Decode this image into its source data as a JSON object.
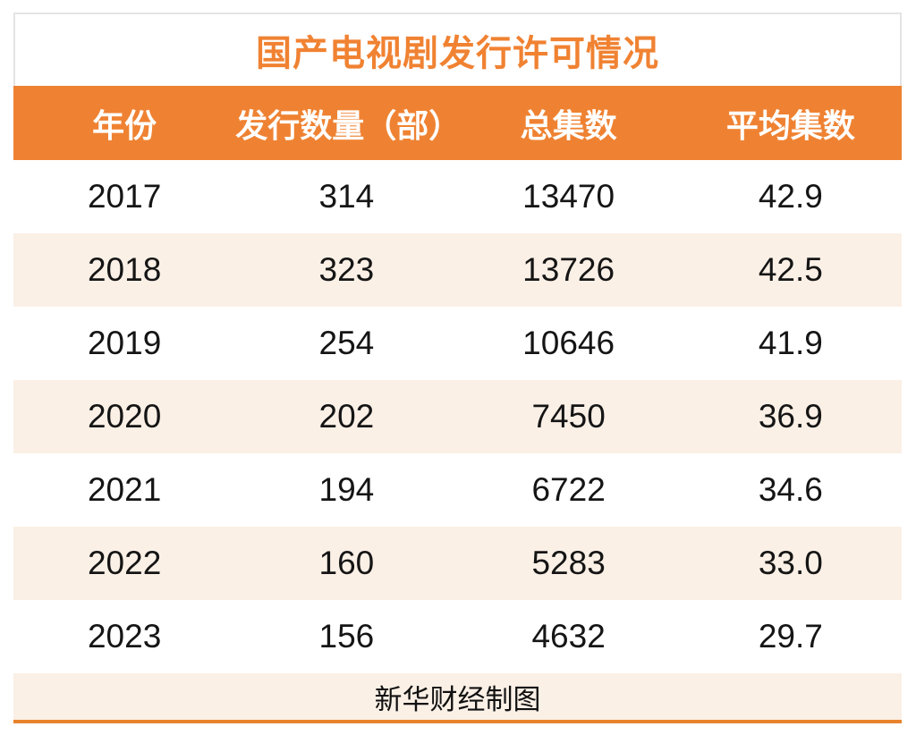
{
  "chart_data": {
    "type": "table",
    "title": "国产电视剧发行许可情况",
    "columns": [
      "年份",
      "发行数量（部）",
      "总集数",
      "平均集数"
    ],
    "rows": [
      [
        "2017",
        "314",
        "13470",
        "42.9"
      ],
      [
        "2018",
        "323",
        "13726",
        "42.5"
      ],
      [
        "2019",
        "254",
        "10646",
        "41.9"
      ],
      [
        "2020",
        "202",
        "7450",
        "36.9"
      ],
      [
        "2021",
        "194",
        "6722",
        "34.6"
      ],
      [
        "2022",
        "160",
        "5283",
        "33.0"
      ],
      [
        "2023",
        "156",
        "4632",
        "29.7"
      ]
    ],
    "source_note": "新华财经制图",
    "layout_hints": {
      "row_striping": "white / light cream alternating",
      "column_alignment": "center",
      "columns_equal_width": true
    }
  },
  "colors": {
    "accent_orange": "#ef8232",
    "title_orange": "#f08232",
    "bottom_line_orange": "#e8832d",
    "row_alt_cream": "#fbf0e6",
    "title_border_gray": "#e4e4e4",
    "text_dark": "#151515",
    "header_text": "#ffffff"
  }
}
